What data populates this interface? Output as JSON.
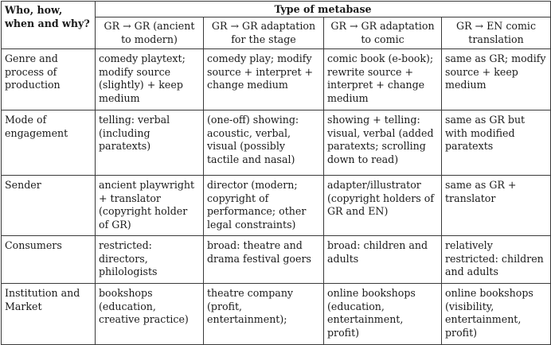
{
  "table": {
    "corner_header": "Who, how, when and why?",
    "group_header": "Type of metabase",
    "columns": [
      "GR → GR (ancient to modern)",
      "GR → GR adaptation for the stage",
      "GR → GR adaptation to comic",
      "GR → EN comic translation"
    ],
    "rows": [
      {
        "label": "Genre and process of production",
        "cells": [
          "comedy playtext; modify source (slightly) + keep medium",
          "comedy play; modify source + interpret + change medium",
          "comic book (e-book); rewrite source + interpret + change medium",
          "same as GR; modify source + keep medium"
        ]
      },
      {
        "label": "Mode of engagement",
        "cells": [
          "telling: verbal (including paratexts)",
          "(one-off) showing: acoustic, verbal, visual (possibly tactile and nasal)",
          "showing + telling: visual, verbal (added paratexts; scrolling down to read)",
          "same as GR but with modified paratexts"
        ]
      },
      {
        "label": "Sender",
        "cells": [
          "ancient playwright + translator (copyright holder of GR)",
          "director (modern; copyright of performance; other legal constraints)",
          "adapter/illustrator (copyright holders of GR and EN)",
          "same as GR + translator"
        ]
      },
      {
        "label": "Consumers",
        "cells": [
          "restricted: directors, philologists",
          "broad: theatre and drama festival goers",
          "broad: children and adults",
          "relatively restricted: children and adults"
        ]
      },
      {
        "label": "Institution and Market",
        "cells": [
          "bookshops (education, creative practice)",
          "theatre company (profit, entertainment);",
          "online bookshops (education, entertainment, profit)",
          "online bookshops (visibility, entertainment, profit)"
        ]
      }
    ]
  }
}
